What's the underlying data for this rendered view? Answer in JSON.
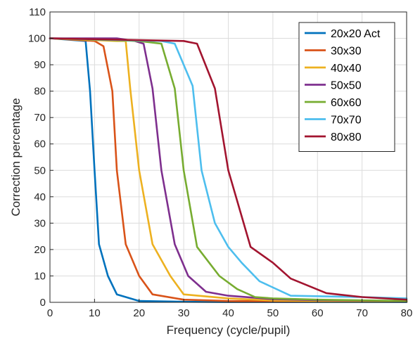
{
  "chart_data": {
    "type": "line",
    "title": "",
    "xlabel": "Frequency (cycle/pupil)",
    "ylabel": "Correction percentage",
    "xlim": [
      0,
      80
    ],
    "ylim": [
      0,
      110
    ],
    "xticks": [
      0,
      10,
      20,
      30,
      40,
      50,
      60,
      70,
      80
    ],
    "yticks": [
      0,
      10,
      20,
      30,
      40,
      50,
      60,
      70,
      80,
      90,
      100,
      110
    ],
    "grid": true,
    "legend_position": "top-right",
    "series": [
      {
        "name": "20x20 Act",
        "color": "#0072BD",
        "x": [
          0,
          8,
          9,
          10,
          11,
          13,
          15,
          20,
          30,
          40,
          60,
          80
        ],
        "y": [
          100,
          99,
          80,
          50,
          22,
          10,
          3,
          0.5,
          0.2,
          0.1,
          0.1,
          0.1
        ]
      },
      {
        "name": "30x30",
        "color": "#D95319",
        "x": [
          0,
          10,
          12,
          14,
          15,
          17,
          20,
          23,
          30,
          40,
          60,
          80
        ],
        "y": [
          100,
          99,
          97,
          80,
          50,
          22,
          10,
          3,
          1,
          0.5,
          0.3,
          0.2
        ]
      },
      {
        "name": "40x40",
        "color": "#EDB120",
        "x": [
          0,
          15,
          17,
          18,
          20,
          23,
          27,
          30,
          40,
          50,
          60,
          80
        ],
        "y": [
          100,
          99,
          99,
          81,
          50,
          22,
          10,
          3,
          1.5,
          0.7,
          0.5,
          0.3
        ]
      },
      {
        "name": "50x50",
        "color": "#7E2F8E",
        "x": [
          0,
          15,
          19,
          21,
          23,
          25,
          28,
          31,
          35,
          40,
          50,
          60,
          80
        ],
        "y": [
          100,
          100,
          99,
          98,
          81,
          50,
          22,
          10,
          4,
          2.5,
          1.2,
          0.8,
          0.5
        ]
      },
      {
        "name": "60x60",
        "color": "#77AC30",
        "x": [
          0,
          20,
          25,
          28,
          30,
          33,
          38,
          42,
          46,
          50,
          60,
          80
        ],
        "y": [
          100,
          99,
          98,
          81,
          50,
          21,
          10,
          5,
          2,
          1.5,
          1,
          0.5
        ]
      },
      {
        "name": "70x70",
        "color": "#4DBEEE",
        "x": [
          0,
          25,
          28,
          30,
          32,
          34,
          37,
          40,
          43,
          47,
          54,
          70,
          80
        ],
        "y": [
          100,
          99,
          98,
          90,
          82,
          50,
          30,
          21,
          15,
          8,
          2.5,
          2,
          1.5
        ]
      },
      {
        "name": "80x80",
        "color": "#A2142F",
        "x": [
          0,
          30,
          33,
          37,
          40,
          45,
          50,
          54,
          62,
          70,
          80
        ],
        "y": [
          100,
          99,
          98,
          81,
          50,
          21,
          15,
          9,
          3.5,
          2,
          1
        ]
      }
    ]
  }
}
